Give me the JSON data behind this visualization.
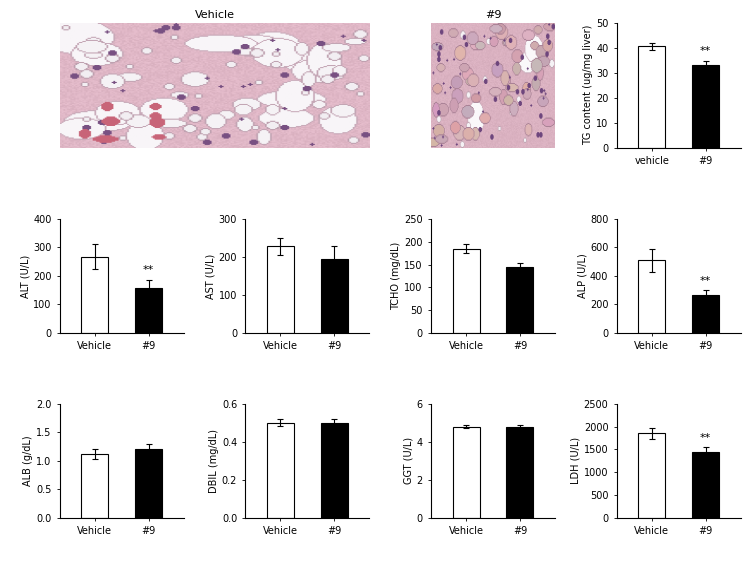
{
  "tg": {
    "vehicle": 40.5,
    "nine": 33.0,
    "vehicle_err": 1.5,
    "nine_err": 1.8,
    "ylim": [
      0,
      50
    ],
    "yticks": [
      0,
      10,
      20,
      30,
      40,
      50
    ],
    "ylabel": "TG content (ug/mg liver)",
    "sig": "**"
  },
  "alt": {
    "vehicle": 268,
    "nine": 158,
    "vehicle_err": 45,
    "nine_err": 28,
    "ylim": [
      0,
      400
    ],
    "yticks": [
      0,
      100,
      200,
      300,
      400
    ],
    "ylabel": "ALT (U/L)",
    "sig": "**"
  },
  "ast": {
    "vehicle": 228,
    "nine": 195,
    "vehicle_err": 22,
    "nine_err": 35,
    "ylim": [
      0,
      300
    ],
    "yticks": [
      0,
      100,
      200,
      300
    ],
    "ylabel": "AST (U/L)",
    "sig": null
  },
  "tcho": {
    "vehicle": 185,
    "nine": 145,
    "vehicle_err": 10,
    "nine_err": 8,
    "ylim": [
      0,
      250
    ],
    "yticks": [
      0,
      50,
      100,
      150,
      200,
      250
    ],
    "ylabel": "TCHO (mg/dL)",
    "sig": null
  },
  "alp": {
    "vehicle": 510,
    "nine": 268,
    "vehicle_err": 80,
    "nine_err": 32,
    "ylim": [
      0,
      800
    ],
    "yticks": [
      0,
      200,
      400,
      600,
      800
    ],
    "ylabel": "ALP (U/L)",
    "sig": "**"
  },
  "alb": {
    "vehicle": 1.12,
    "nine": 1.2,
    "vehicle_err": 0.08,
    "nine_err": 0.1,
    "ylim": [
      0,
      2
    ],
    "yticks": [
      0,
      0.5,
      1.0,
      1.5,
      2.0
    ],
    "ylabel": "ALB (g/dL)",
    "sig": null
  },
  "dbil": {
    "vehicle": 0.5,
    "nine": 0.5,
    "vehicle_err": 0.018,
    "nine_err": 0.018,
    "ylim": [
      0.0,
      0.6
    ],
    "yticks": [
      0.0,
      0.2,
      0.4,
      0.6
    ],
    "ylabel": "DBIL (mg/dL)",
    "sig": null
  },
  "ggt": {
    "vehicle": 4.8,
    "nine": 4.8,
    "vehicle_err": 0.09,
    "nine_err": 0.09,
    "ylim": [
      0,
      6
    ],
    "yticks": [
      0,
      2,
      4,
      6
    ],
    "ylabel": "GGT (U/L)",
    "sig": null
  },
  "ldh": {
    "vehicle": 1850,
    "nine": 1450,
    "vehicle_err": 130,
    "nine_err": 95,
    "ylim": [
      0,
      2500
    ],
    "yticks": [
      0,
      500,
      1000,
      1500,
      2000,
      2500
    ],
    "ylabel": "LDH (U/L)",
    "sig": "**"
  },
  "bar_color_vehicle": "white",
  "bar_color_nine": "black",
  "bar_edgecolor": "black",
  "fontsize": 7,
  "title_vehicle": "Vehicle",
  "title_nine": "#9",
  "he_vehicle_seed": 1,
  "he_nine_seed": 2
}
